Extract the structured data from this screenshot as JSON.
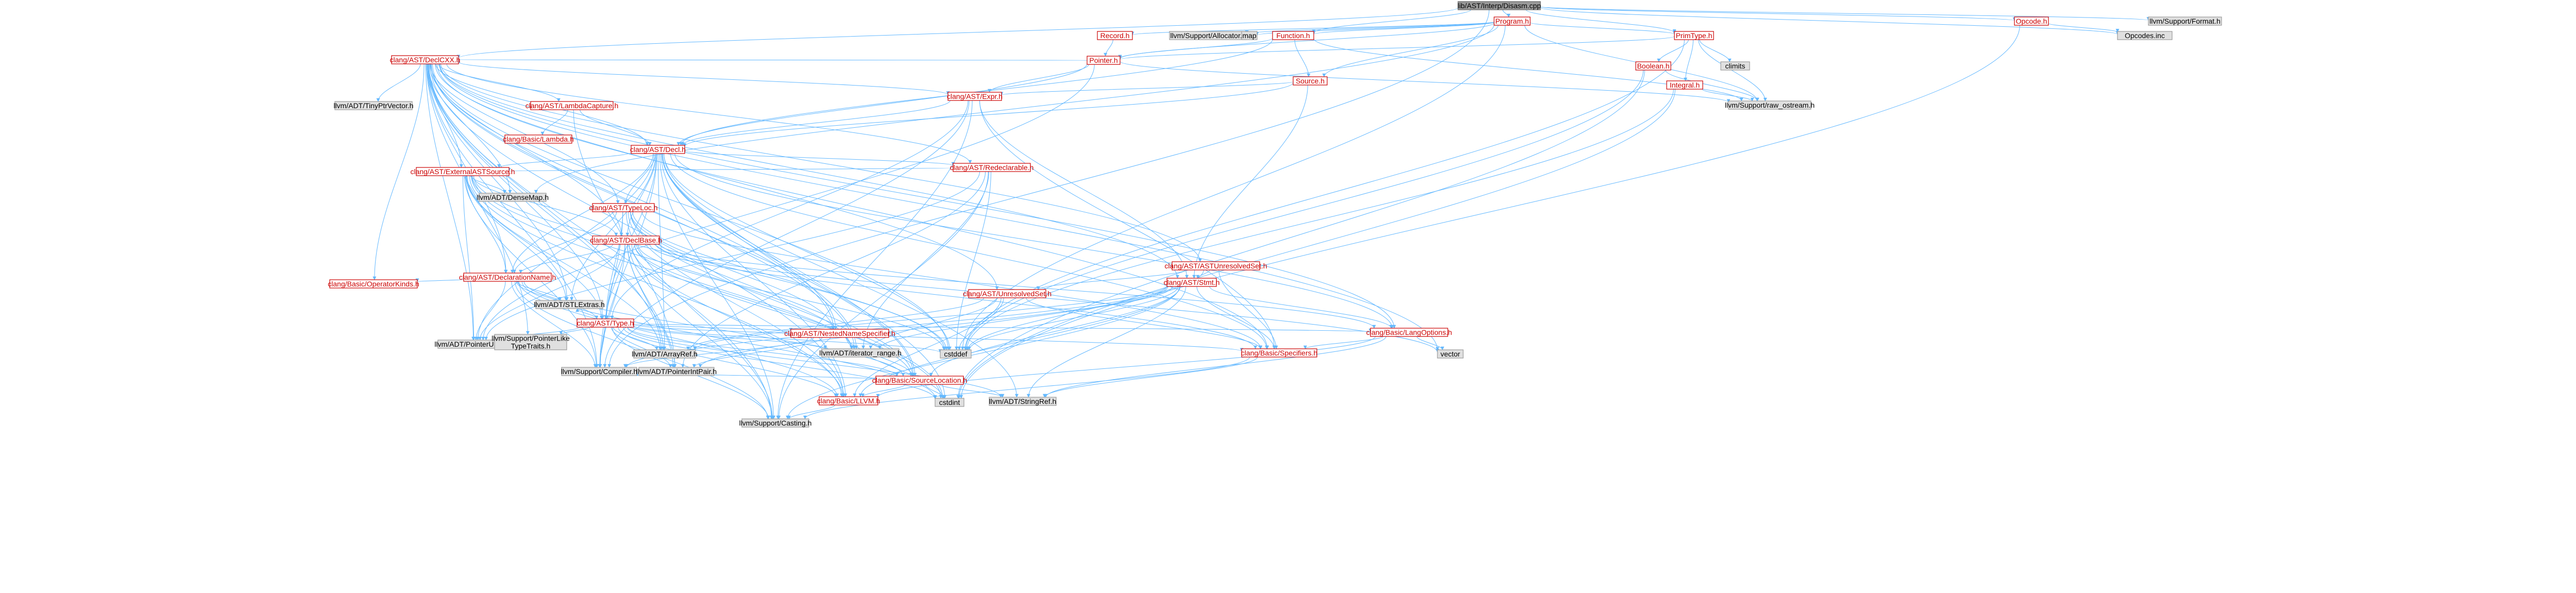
{
  "title": "lib/AST/Interp/Disasm.cpp",
  "colors": {
    "edge": "#63b8ff",
    "node_fill": "#ffffff",
    "node_stroke_red": "#cc0000",
    "node_stroke_gray": "#999999",
    "gray_fill": "#e0e0e0",
    "root_fill": "#999999",
    "root_stroke": "#666666",
    "label_red": "#cc0000",
    "label_black": "#000000"
  },
  "nodes": [
    {
      "id": "root",
      "label": "lib/AST/Interp/Disasm.cpp",
      "style": "root"
    },
    {
      "id": "program",
      "label": "Program.h",
      "style": "red"
    },
    {
      "id": "function",
      "label": "Function.h",
      "style": "red"
    },
    {
      "id": "opcode",
      "label": "Opcode.h",
      "style": "red"
    },
    {
      "id": "primtype",
      "label": "PrimType.h",
      "style": "red"
    },
    {
      "id": "format",
      "label": "llvm/Support/Format.h",
      "style": "gray"
    },
    {
      "id": "opcodes",
      "label": "Opcodes.inc",
      "style": "gray"
    },
    {
      "id": "record",
      "label": "Record.h",
      "style": "red"
    },
    {
      "id": "allocator",
      "label": "llvm/Support/Allocator.h",
      "style": "gray"
    },
    {
      "id": "map",
      "label": "map",
      "style": "gray"
    },
    {
      "id": "pointer",
      "label": "Pointer.h",
      "style": "red"
    },
    {
      "id": "source",
      "label": "Source.h",
      "style": "red"
    },
    {
      "id": "boolean",
      "label": "Boolean.h",
      "style": "red"
    },
    {
      "id": "integral",
      "label": "Integral.h",
      "style": "red"
    },
    {
      "id": "climits",
      "label": "climits",
      "style": "gray"
    },
    {
      "id": "raw_ostream",
      "label": "llvm/Support/raw_ostream.h",
      "style": "gray"
    },
    {
      "id": "declcxx",
      "label": "clang/AST/DeclCXX.h",
      "style": "red"
    },
    {
      "id": "expr",
      "label": "clang/AST/Expr.h",
      "style": "red"
    },
    {
      "id": "tinyptrvector",
      "label": "llvm/ADT/TinyPtrVector.h",
      "style": "gray"
    },
    {
      "id": "lambdacapture",
      "label": "clang/AST/LambdaCapture.h",
      "style": "red"
    },
    {
      "id": "lambda",
      "label": "clang/Basic/Lambda.h",
      "style": "red"
    },
    {
      "id": "decl",
      "label": "clang/AST/Decl.h",
      "style": "red"
    },
    {
      "id": "redeclarable",
      "label": "clang/AST/Redeclarable.h",
      "style": "red"
    },
    {
      "id": "externalastsource",
      "label": "clang/AST/ExternalASTSource.h",
      "style": "red"
    },
    {
      "id": "densemap",
      "label": "llvm/ADT/DenseMap.h",
      "style": "gray"
    },
    {
      "id": "typeloc",
      "label": "clang/AST/TypeLoc.h",
      "style": "red"
    },
    {
      "id": "declbase",
      "label": "clang/AST/DeclBase.h",
      "style": "red"
    },
    {
      "id": "declarationname",
      "label": "clang/AST/DeclarationName.h",
      "style": "red"
    },
    {
      "id": "operatorkinds",
      "label": "clang/Basic/OperatorKinds.h",
      "style": "red"
    },
    {
      "id": "stlextras",
      "label": "llvm/ADT/STLExtras.h",
      "style": "gray"
    },
    {
      "id": "type",
      "label": "clang/AST/Type.h",
      "style": "red"
    },
    {
      "id": "pointerunion",
      "label": "llvm/ADT/PointerUnion.h",
      "style": "gray"
    },
    {
      "id": "pointerliketypetraits",
      "label": "llvm/Support/PointerLike\nTypeTraits.h",
      "style": "gray"
    },
    {
      "id": "arrayref",
      "label": "llvm/ADT/ArrayRef.h",
      "style": "gray"
    },
    {
      "id": "compiler",
      "label": "llvm/Support/Compiler.h",
      "style": "gray"
    },
    {
      "id": "pointerintpair",
      "label": "llvm/ADT/PointerIntPair.h",
      "style": "gray"
    },
    {
      "id": "nestednamespecifier",
      "label": "clang/AST/NestedNameSpecifier.h",
      "style": "red"
    },
    {
      "id": "iterator_range",
      "label": "llvm/ADT/iterator_range.h",
      "style": "gray"
    },
    {
      "id": "cstddef",
      "label": "cstddef",
      "style": "gray"
    },
    {
      "id": "sourcelocation",
      "label": "clang/Basic/SourceLocation.h",
      "style": "red"
    },
    {
      "id": "llvmh",
      "label": "clang/Basic/LLVM.h",
      "style": "red"
    },
    {
      "id": "cstdint",
      "label": "cstdint",
      "style": "gray"
    },
    {
      "id": "casting",
      "label": "llvm/Support/Casting.h",
      "style": "gray"
    },
    {
      "id": "stringref",
      "label": "llvm/ADT/StringRef.h",
      "style": "gray"
    },
    {
      "id": "specifiers",
      "label": "clang/Basic/Specifiers.h",
      "style": "red"
    },
    {
      "id": "langoptions",
      "label": "clang/Basic/LangOptions.h",
      "style": "red"
    },
    {
      "id": "vector",
      "label": "vector",
      "style": "gray"
    },
    {
      "id": "stmt",
      "label": "clang/AST/Stmt.h",
      "style": "red"
    },
    {
      "id": "unresolvedset",
      "label": "clang/AST/UnresolvedSet.h",
      "style": "red"
    },
    {
      "id": "astunresolvedset",
      "label": "clang/AST/ASTUnresolvedSet.h",
      "style": "red"
    }
  ]
}
